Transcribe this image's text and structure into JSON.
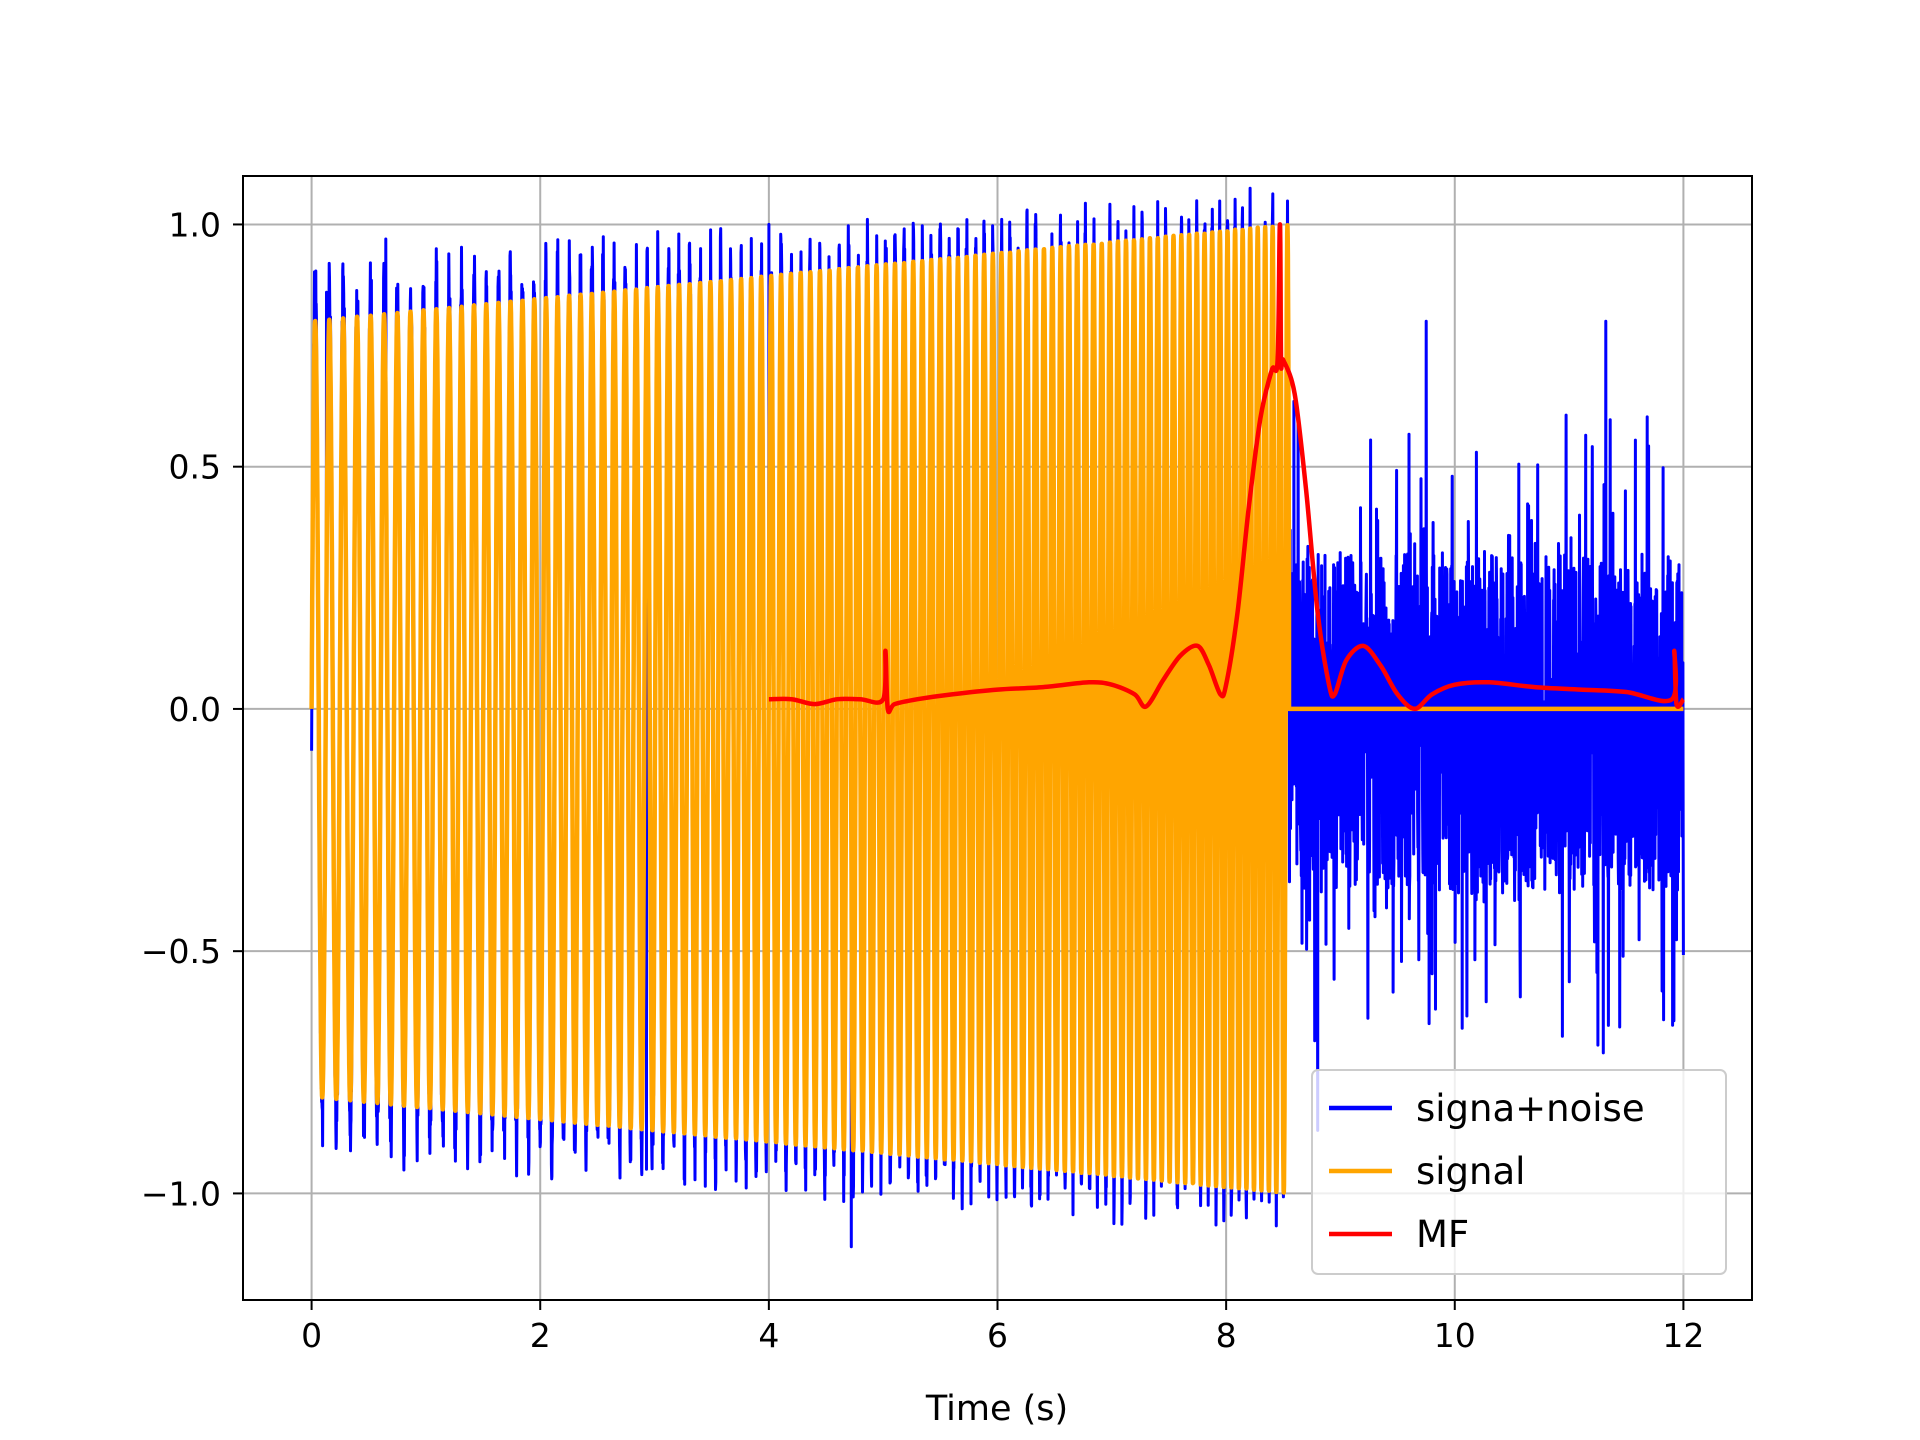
{
  "chart_data": {
    "type": "line",
    "title": "",
    "xlabel": "Time (s)",
    "ylabel": "",
    "xlim": [
      -0.6,
      12.6
    ],
    "ylim": [
      -1.22,
      1.1
    ],
    "xticks": [
      0,
      2,
      4,
      6,
      8,
      10,
      12
    ],
    "yticks": [
      1.0,
      0.5,
      0.0,
      -0.5,
      -1.0
    ],
    "xtick_labels": [
      "0",
      "2",
      "4",
      "6",
      "8",
      "10",
      "12"
    ],
    "ytick_labels": [
      "1.0",
      "0.5",
      "0.0",
      "−0.5",
      "−1.0"
    ],
    "grid": true,
    "legend_position": "lower-right",
    "series": [
      {
        "name": "signa+noise",
        "color": "#0000ff",
        "description": "chirp signal plus noise, 0 to 12 s",
        "envelope_start_amplitude": 0.85,
        "envelope_end_amplitude": 1.0,
        "signal_end": 8.55,
        "noise_amplitude": 0.7,
        "x_range": [
          0,
          12
        ],
        "spikes": [
          {
            "x": 0.13,
            "y": 0.86
          },
          {
            "x": 0.65,
            "y": 0.97
          },
          {
            "x": 2.1,
            "y": -0.97
          },
          {
            "x": 2.93,
            "y": -0.95
          },
          {
            "x": 4.0,
            "y": 1.0
          },
          {
            "x": 4.72,
            "y": -1.11
          },
          {
            "x": 8.8,
            "y": -0.87
          },
          {
            "x": 9.75,
            "y": 0.8
          },
          {
            "x": 11.32,
            "y": 0.8
          },
          {
            "x": 11.3,
            "y": -0.71
          }
        ]
      },
      {
        "name": "signal",
        "color": "#ffa500",
        "description": "linear chirp with rising amplitude, then zero",
        "amplitude_start": 0.8,
        "amplitude_end": 1.0,
        "x_range": [
          0,
          8.55
        ],
        "flat_after": [
          8.55,
          12
        ],
        "flat_value": 0.0
      },
      {
        "name": "MF",
        "color": "#ff0000",
        "description": "matched filter output",
        "x": [
          4.0,
          4.2,
          4.4,
          4.6,
          4.8,
          5.0,
          5.02,
          5.04,
          5.1,
          5.3,
          5.6,
          6.0,
          6.4,
          6.8,
          7.0,
          7.2,
          7.3,
          7.45,
          7.6,
          7.75,
          7.85,
          7.95,
          8.0,
          8.1,
          8.2,
          8.3,
          8.4,
          8.45,
          8.47,
          8.48,
          8.5,
          8.6,
          8.7,
          8.8,
          8.9,
          8.95,
          9.05,
          9.2,
          9.35,
          9.5,
          9.65,
          9.8,
          10.0,
          10.3,
          10.7,
          11.1,
          11.5,
          11.9,
          11.92,
          11.94,
          12.0
        ],
        "y": [
          0.02,
          0.02,
          0.01,
          0.02,
          0.02,
          0.02,
          0.12,
          0.0,
          0.01,
          0.02,
          0.03,
          0.04,
          0.045,
          0.055,
          0.05,
          0.03,
          0.005,
          0.06,
          0.11,
          0.13,
          0.09,
          0.03,
          0.05,
          0.2,
          0.42,
          0.6,
          0.7,
          0.72,
          1.0,
          0.72,
          0.72,
          0.65,
          0.45,
          0.2,
          0.05,
          0.03,
          0.1,
          0.13,
          0.09,
          0.03,
          0.0,
          0.03,
          0.05,
          0.055,
          0.045,
          0.04,
          0.035,
          0.02,
          0.12,
          0.01,
          0.02
        ]
      }
    ]
  }
}
